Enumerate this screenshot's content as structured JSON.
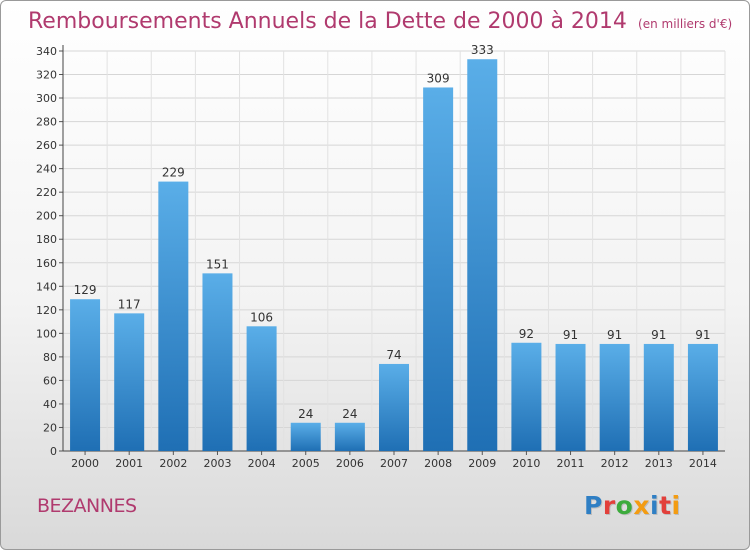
{
  "title": "Remboursements Annuels de la Dette de 2000 à 2014",
  "subtitle": "(en milliers d'€)",
  "city": "BEZANNES",
  "logo": {
    "text": "Proxiti",
    "colors": [
      "#2f7fc4",
      "#e2403b",
      "#3cab3c",
      "#f39c12",
      "#2f7fc4",
      "#e2403b",
      "#f39c12"
    ]
  },
  "colors": {
    "bar_top": "#5aaee8",
    "bar_bottom": "#1f6fb4",
    "title": "#b03a6e"
  },
  "chart_data": {
    "type": "bar",
    "categories": [
      "2000",
      "2001",
      "2002",
      "2003",
      "2004",
      "2005",
      "2006",
      "2007",
      "2008",
      "2009",
      "2010",
      "2011",
      "2012",
      "2013",
      "2014"
    ],
    "values": [
      129,
      117,
      229,
      151,
      106,
      24,
      24,
      74,
      309,
      333,
      92,
      91,
      91,
      91,
      91
    ],
    "ylim": [
      0,
      340
    ],
    "yticks": [
      0,
      20,
      40,
      60,
      80,
      100,
      120,
      140,
      160,
      180,
      200,
      220,
      240,
      260,
      280,
      300,
      320,
      340
    ],
    "grid": true,
    "data_labels": true
  }
}
